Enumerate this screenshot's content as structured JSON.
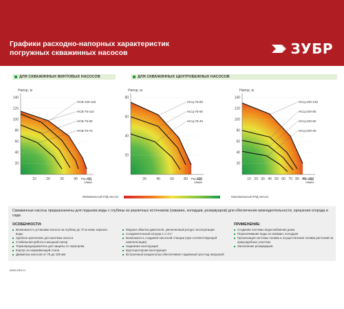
{
  "header": {
    "title_line1": "Графики расходно-напорных характеристик",
    "title_line2": "погружных скважинных насосов",
    "brand": "ЗУБР",
    "colors": {
      "red": "#b01e23"
    }
  },
  "sections": {
    "screw": "ДЛЯ СКВАЖИННЫХ ВИНТОВЫХ НАСОСОВ",
    "centrifugal": "ДЛЯ СКВАЖИННЫХ ЦЕНТРОБЕЖНЫХ НАСОСОВ"
  },
  "chart_data": [
    {
      "type": "line",
      "ylabel": "Напор, м",
      "xlabel": "Расход, л/мин",
      "xlim": [
        0,
        50
      ],
      "ylim": [
        0,
        140
      ],
      "xticks": [
        10,
        20,
        30,
        40,
        50
      ],
      "yticks": [
        20,
        40,
        60,
        80,
        100,
        120,
        140
      ],
      "series": [
        {
          "name": "НСВ-100-115",
          "points": [
            [
              0,
              115
            ],
            [
              20,
              98
            ],
            [
              35,
              70
            ],
            [
              45,
              30
            ],
            [
              48,
              10
            ]
          ]
        },
        {
          "name": "НСВ-75-110",
          "points": [
            [
              0,
              110
            ],
            [
              15,
              95
            ],
            [
              30,
              62
            ],
            [
              40,
              25
            ],
            [
              42,
              10
            ]
          ]
        },
        {
          "name": "НСВ-75-90",
          "points": [
            [
              0,
              90
            ],
            [
              15,
              75
            ],
            [
              28,
              45
            ],
            [
              36,
              12
            ]
          ]
        },
        {
          "name": "НСВ-75-70",
          "points": [
            [
              0,
              70
            ],
            [
              12,
              58
            ],
            [
              24,
              32
            ],
            [
              30,
              10
            ]
          ]
        }
      ]
    },
    {
      "type": "line",
      "ylabel": "Напор, м",
      "xlabel": "Расход, л/мин",
      "xlim": [
        0,
        100
      ],
      "ylim": [
        0,
        80
      ],
      "xticks": [
        20,
        40,
        60,
        80,
        100
      ],
      "yticks": [
        20,
        40,
        60,
        80
      ],
      "series": [
        {
          "name": "НСЦ-75-80",
          "points": [
            [
              0,
              75
            ],
            [
              40,
              62
            ],
            [
              70,
              38
            ],
            [
              88,
              10
            ]
          ]
        },
        {
          "name": "НСЦ-75-60",
          "points": [
            [
              0,
              60
            ],
            [
              40,
              50
            ],
            [
              68,
              28
            ],
            [
              80,
              10
            ]
          ]
        },
        {
          "name": "НСЦ-75-40",
          "points": [
            [
              0,
              42
            ],
            [
              35,
              34
            ],
            [
              60,
              18
            ],
            [
              72,
              5
            ]
          ]
        }
      ]
    },
    {
      "type": "line",
      "ylabel": "Напор, м",
      "xlabel": "Расход, л/мин",
      "xlim": [
        0,
        100
      ],
      "ylim": [
        0,
        140
      ],
      "xticks": [
        10,
        20,
        30,
        40,
        50,
        60,
        70,
        80,
        90,
        100
      ],
      "yticks": [
        20,
        40,
        60,
        80,
        100,
        120,
        140
      ],
      "series": [
        {
          "name": "НСЦ-100-135",
          "points": [
            [
              0,
              130
            ],
            [
              40,
              110
            ],
            [
              70,
              70
            ],
            [
              88,
              20
            ]
          ]
        },
        {
          "name": "НСЦ-100-80",
          "points": [
            [
              0,
              80
            ],
            [
              40,
              68
            ],
            [
              65,
              40
            ],
            [
              80,
              10
            ]
          ]
        },
        {
          "name": "НСЦ-100-60",
          "points": [
            [
              0,
              62
            ],
            [
              38,
              52
            ],
            [
              60,
              30
            ],
            [
              74,
              8
            ]
          ]
        },
        {
          "name": "НСЦ-100-40",
          "points": [
            [
              0,
              42
            ],
            [
              35,
              34
            ],
            [
              55,
              18
            ],
            [
              66,
              5
            ]
          ]
        }
      ]
    }
  ],
  "legend": {
    "min": "Минимальный КПД насоса",
    "max": "Максимальный КПД насоса"
  },
  "description": "Скважинные насосы предназначены для подъема воды с глубины из различных источников (скважин, колодцев, резервуаров) для обеспечения жизнедеятельности, орошения огорода и сада.",
  "features": {
    "title": "ОСОБЕННОСТИ:",
    "items": [
      "Возможность установки насоса на глубину до 70 м ниже зеркала воды",
      "Удобное крепление для монтажа насоса",
      "Стабильная работа и мощный напор",
      "Термопредохранитель для защиты от перегрева",
      "Корпус из нержавеющей стали",
      "Диаметры насосов от 75 до 100 мм"
    ]
  },
  "features2": {
    "items": [
      "Медная обмотка двигателя, увеличенный ресурс эксплуатации",
      "Соединительный штуцер 1 и 1¼\"",
      "Возможность создания насосной станции (при соответствующей комплектации)",
      "Надежная конструкция",
      "Кругло­роторная конструкция",
      "Встроенный конденсатор обеспечивает надежный пуск под нагрузкой"
    ]
  },
  "application": {
    "title": "ПРИМЕНЕНИЕ:",
    "items": [
      "Создание системы водо­снабжения дома",
      "Перекачивание воды из скважин, колодцев",
      "Организация системы полива и осуществление полива растений на приусадебных участках",
      "Заполнение резервуаров"
    ]
  },
  "footer": "www.zubr.ru"
}
